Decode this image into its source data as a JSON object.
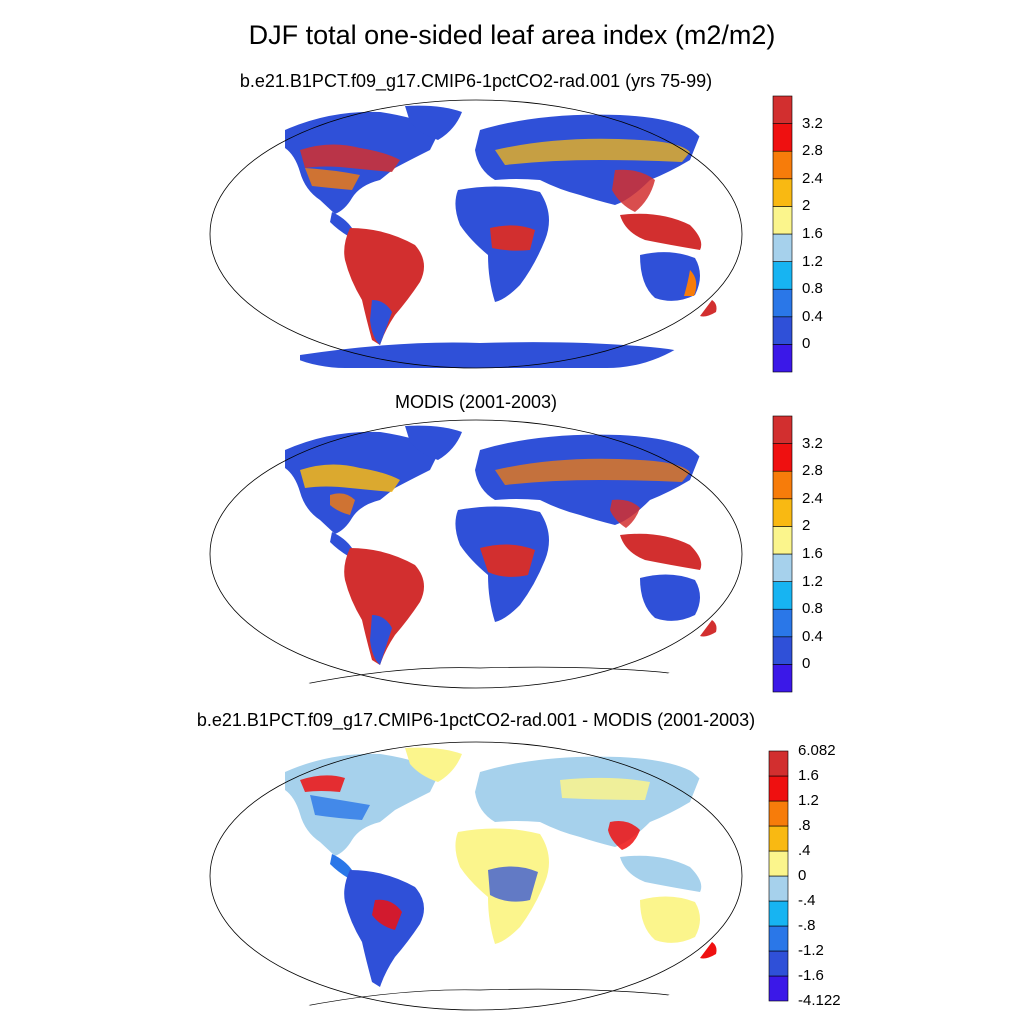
{
  "title": "DJF total one-sided leaf area index (m2/m2)",
  "colors": {
    "lai": [
      "#3b18e8",
      "#2f50d8",
      "#2a77e8",
      "#17b4f2",
      "#a6d1ec",
      "#fbf58c",
      "#f9b912",
      "#f77c0a",
      "#ef1010",
      "#d22f2f"
    ],
    "diff": [
      "#3b18e8",
      "#2f50d8",
      "#2a77e8",
      "#17b4f2",
      "#a6d1ec",
      "#fbf58c",
      "#f9b912",
      "#f77c0a",
      "#ef1010",
      "#d22f2f"
    ]
  },
  "panels": [
    {
      "name": "model",
      "subtitle": "b.e21.B1PCT.f09_g17.CMIP6-1pctCO2-rad.001 (yrs 75-99)",
      "colorbar": [
        "3.2",
        "2.8",
        "2.4",
        "2",
        "1.6",
        "1.2",
        "0.8",
        "0.4",
        "0"
      ]
    },
    {
      "name": "modis",
      "subtitle": "MODIS (2001-2003)",
      "colorbar": [
        "3.2",
        "2.8",
        "2.4",
        "2",
        "1.6",
        "1.2",
        "0.8",
        "0.4",
        "0"
      ]
    },
    {
      "name": "difference",
      "subtitle": "b.e21.B1PCT.f09_g17.CMIP6-1pctCO2-rad.001 - MODIS (2001-2003)",
      "colorbar": [
        "6.082",
        "1.6",
        "1.2",
        ".8",
        ".4",
        "0",
        "-.4",
        "-.8",
        "-1.2",
        "-1.6",
        "-4.122"
      ]
    }
  ]
}
